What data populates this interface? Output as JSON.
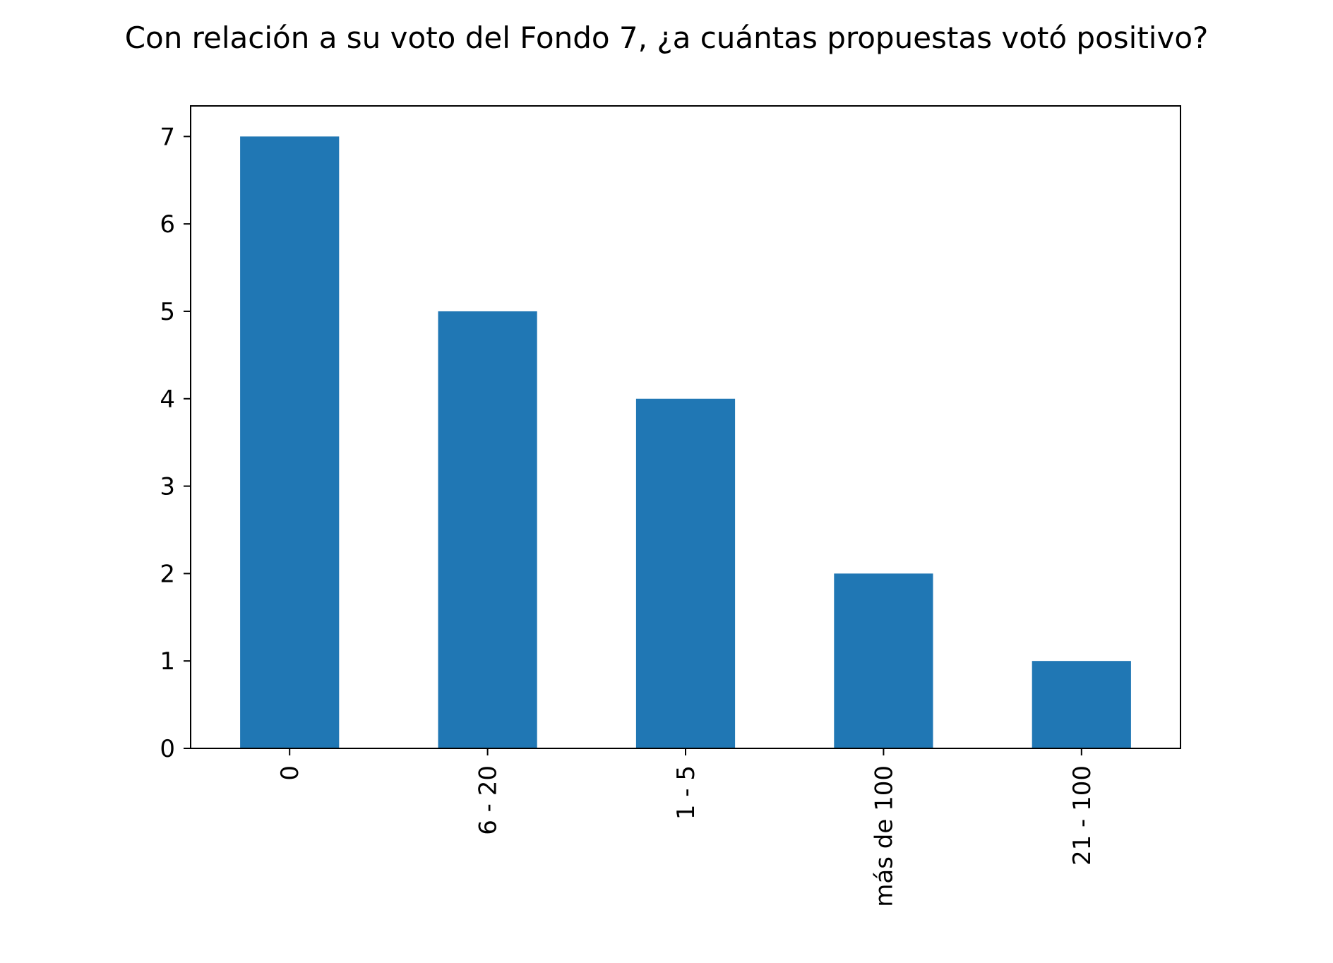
{
  "chart_data": {
    "type": "bar",
    "title": "Con relación a su voto del Fondo 7, ¿a cuántas propuestas votó positivo?",
    "xlabel": "",
    "ylabel": "",
    "categories": [
      "0",
      "6 - 20",
      "1 - 5",
      "más de 100",
      "21 - 100"
    ],
    "values": [
      7,
      5,
      4,
      2,
      1
    ],
    "ylim": [
      0,
      7.35
    ],
    "yticks": [
      0,
      1,
      2,
      3,
      4,
      5,
      6,
      7
    ],
    "grid": false,
    "legend": "none",
    "colors": {
      "bar": "#2077b4",
      "axis": "#000000",
      "text": "#000000",
      "background": "#ffffff"
    }
  }
}
